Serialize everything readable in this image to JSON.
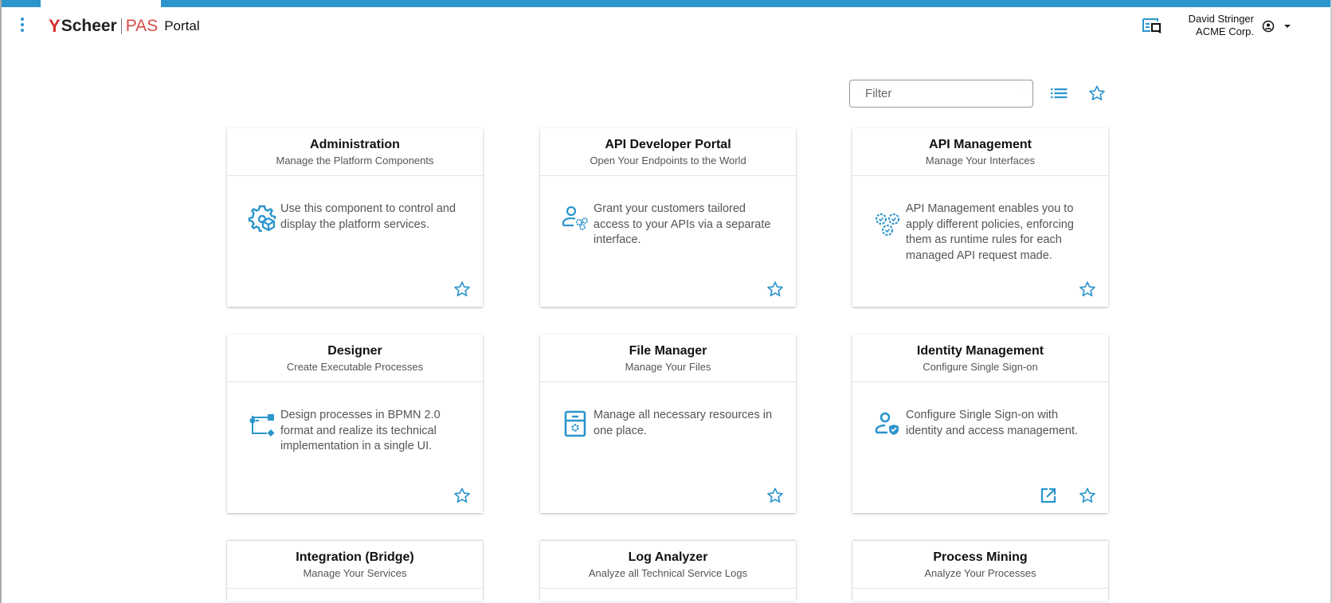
{
  "header": {
    "logo": {
      "mark": "Y",
      "brand": "Scheer",
      "product": "PAS"
    },
    "app_title": "Portal",
    "user": {
      "name": "David Stringer",
      "org": "ACME Corp."
    },
    "icons": [
      "menu-dots-icon",
      "preview-icon",
      "account-circle-icon",
      "caret-down-icon"
    ]
  },
  "toolbar": {
    "filter_placeholder": "Filter",
    "filter_value": "",
    "icons": [
      "search-icon",
      "clear-icon",
      "list-view-icon",
      "favorites-star-icon"
    ]
  },
  "accent": "#2b95cc",
  "cards": [
    {
      "title": "Administration",
      "subtitle": "Manage the Platform Components",
      "description": "Use this component to control and display the platform services.",
      "icon": "gear-cube-icon",
      "external": false
    },
    {
      "title": "API Developer Portal",
      "subtitle": "Open Your Endpoints to the World",
      "description": "Grant your customers tailored access to your APIs via a separate interface.",
      "icon": "user-gears-icon",
      "external": false
    },
    {
      "title": "API Management",
      "subtitle": "Manage Your Interfaces",
      "description": "API Management enables you to apply different policies, enforcing them as runtime rules for each managed API request made.",
      "icon": "gears-check-icon",
      "external": false
    },
    {
      "title": "Designer",
      "subtitle": "Create Executable Processes",
      "description": "Design processes in BPMN 2.0 format and realize its technical implementation in a single UI.",
      "icon": "process-flow-icon",
      "external": false
    },
    {
      "title": "File Manager",
      "subtitle": "Manage Your Files",
      "description": "Manage all necessary resources in one place.",
      "icon": "file-cabinet-icon",
      "external": false
    },
    {
      "title": "Identity Management",
      "subtitle": "Configure Single Sign-on",
      "description": "Configure Single Sign-on with identity and access management.",
      "icon": "users-shield-icon",
      "external": true
    },
    {
      "title": "Integration (Bridge)",
      "subtitle": "Manage Your Services",
      "description": "",
      "icon": "",
      "external": false
    },
    {
      "title": "Log Analyzer",
      "subtitle": "Analyze all Technical Service Logs",
      "description": "",
      "icon": "",
      "external": false
    },
    {
      "title": "Process Mining",
      "subtitle": "Analyze Your Processes",
      "description": "",
      "icon": "",
      "external": false
    }
  ]
}
